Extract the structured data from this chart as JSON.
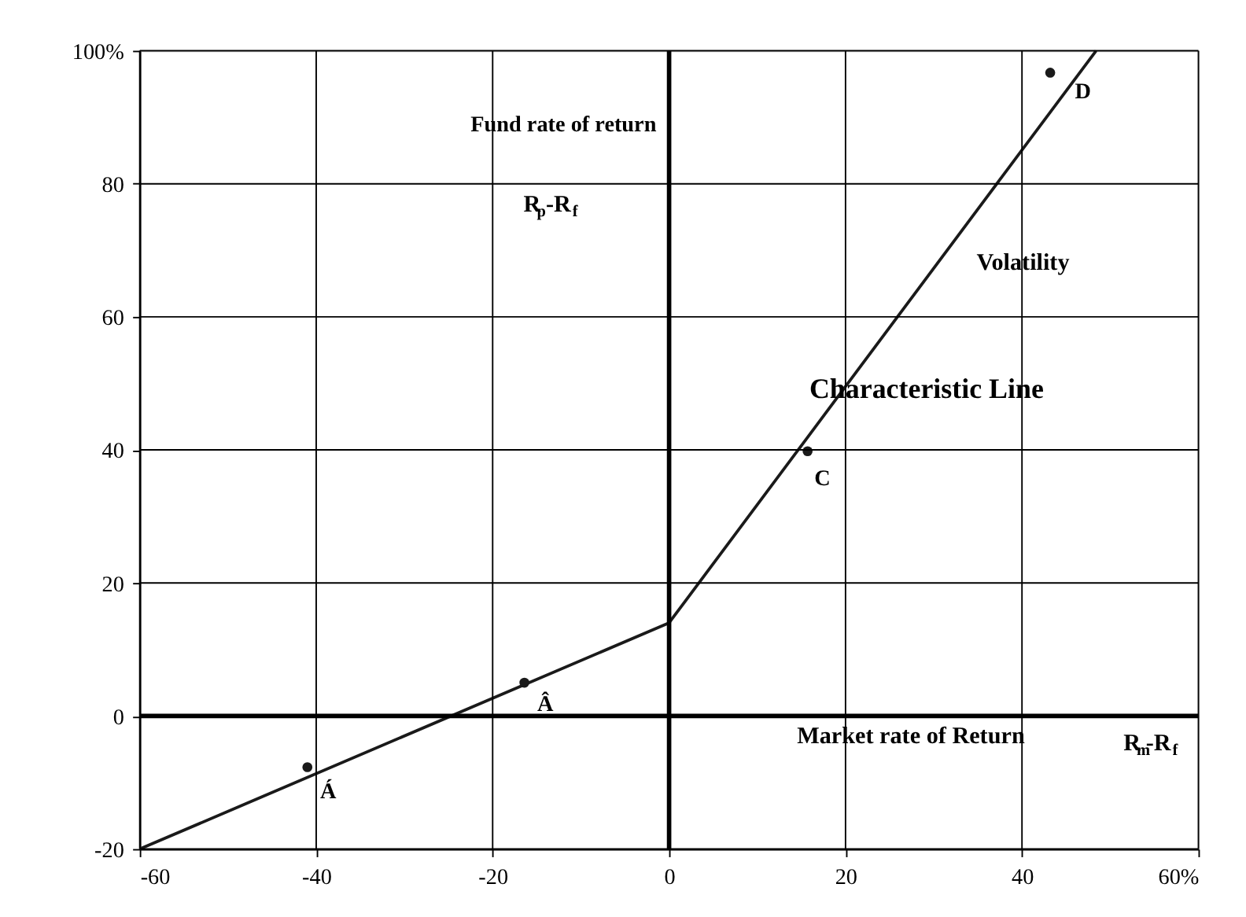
{
  "chart_data": {
    "type": "line",
    "xlabel": "Market rate of Return",
    "ylabel": "Fund rate of  return",
    "series": [
      {
        "color": "#1a1a1a",
        "x": [
          -60,
          0,
          48.4
        ],
        "values": [
          -20,
          14,
          100
        ],
        "marker": "none"
      },
      {
        "type": "scatter",
        "color": "#1a1a1a",
        "x": [
          -41,
          -16.4,
          15.7,
          43.2
        ],
        "values": [
          -7.7,
          5,
          39.8,
          96.7
        ],
        "marker": "circle"
      }
    ],
    "annotations": [
      {
        "text": "Á",
        "x": -41,
        "y": -7.7
      },
      {
        "text": "Â",
        "x": -16.4,
        "y": 5
      },
      {
        "text": "C",
        "x": 15.7,
        "y": 39.8
      },
      {
        "text": "D",
        "x": 43.2,
        "y": 96.7
      },
      {
        "text": "Characteristic Line",
        "x": 15.7,
        "y": 39.8
      },
      {
        "text": "Volatility",
        "x": 30,
        "y": 66
      },
      "R$_{p}$-R$_{f}$",
      "R$_{m}$-R$_{f}$"
    ],
    "xlim": [
      -60,
      60
    ],
    "ylim": [
      -20,
      100
    ],
    "xticks": [
      -60,
      -40,
      -20,
      0,
      20,
      40,
      {
        "value": 60,
        "label": "60%"
      }
    ],
    "yticks": [
      -20,
      0,
      20,
      40,
      60,
      80,
      {
        "value": 100,
        "label": "100%"
      }
    ],
    "grid": true
  }
}
